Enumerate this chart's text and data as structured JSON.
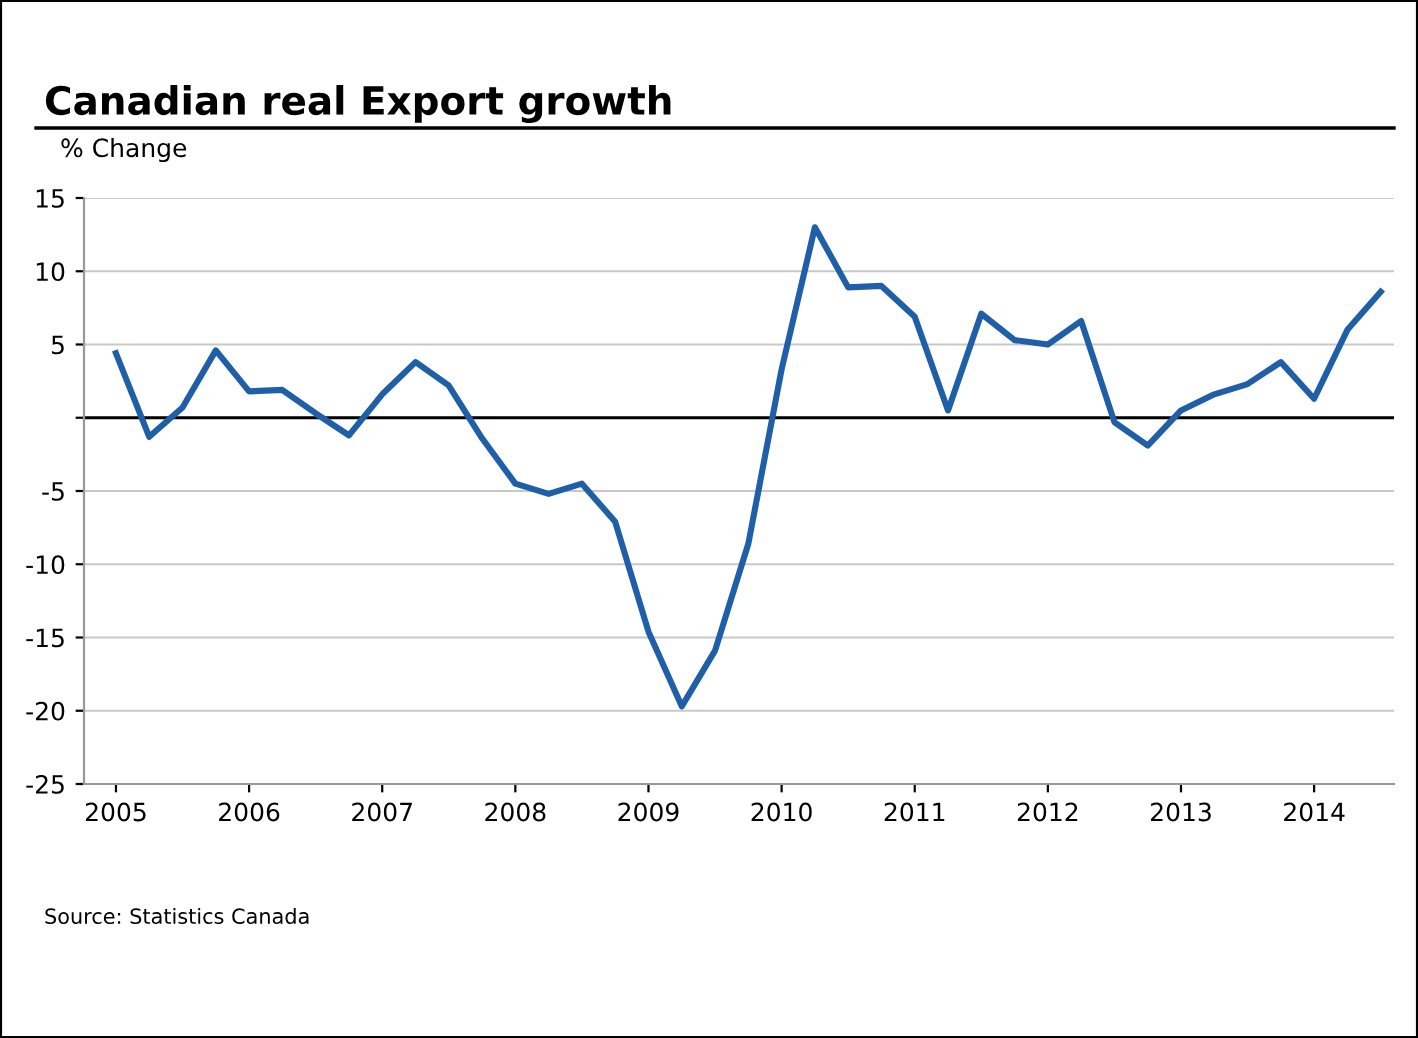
{
  "chart_data": {
    "type": "line",
    "title": "Canadian real Export growth",
    "ylabel": "% Change",
    "x": [
      2005,
      2005.25,
      2005.5,
      2005.75,
      2006,
      2006.25,
      2006.5,
      2006.75,
      2007,
      2007.25,
      2007.5,
      2007.75,
      2008,
      2008.25,
      2008.5,
      2008.75,
      2009,
      2009.25,
      2009.5,
      2009.75,
      2010,
      2010.25,
      2010.5,
      2010.75,
      2011,
      2011.25,
      2011.5,
      2011.75,
      2012,
      2012.25,
      2012.5,
      2012.75,
      2013,
      2013.25,
      2013.5,
      2013.75,
      2014,
      2014.25,
      2014.5
    ],
    "series": [
      {
        "color": "#1f5fa8",
        "values": [
          4.4,
          -1.3,
          0.7,
          4.6,
          1.8,
          1.9,
          0.3,
          -1.2,
          1.6,
          3.8,
          2.2,
          -1.4,
          -4.5,
          -5.2,
          -4.5,
          -7.1,
          -14.6,
          -19.7,
          -15.9,
          -8.6,
          3.3,
          13.0,
          8.9,
          9.0,
          6.9,
          0.5,
          7.1,
          5.3,
          5.0,
          6.6,
          -0.3,
          -1.9,
          0.5,
          1.6,
          2.3,
          3.8,
          1.3,
          6.0,
          8.6
        ]
      }
    ],
    "xlim": [
      2004.76,
      2014.6
    ],
    "xticks": [
      2005,
      2006,
      2007,
      2008,
      2009,
      2010,
      2011,
      2012,
      2013,
      2014
    ],
    "ylim": [
      -25,
      15
    ],
    "yticks": [
      {
        "value": -25,
        "label": "-25"
      },
      {
        "value": -20,
        "label": "-20"
      },
      {
        "value": -15,
        "label": "-15"
      },
      {
        "value": -10,
        "label": "-10"
      },
      {
        "value": -5,
        "label": "-5"
      },
      {
        "value": 0,
        "label": null
      },
      5,
      10,
      15
    ],
    "grid": "y",
    "marker": "none",
    "line_style": "solid",
    "ref_lines": [
      {
        "axis": "y",
        "value": 0,
        "color": "#000000"
      }
    ],
    "annotations": [
      "Source: Statistics Canada"
    ]
  }
}
